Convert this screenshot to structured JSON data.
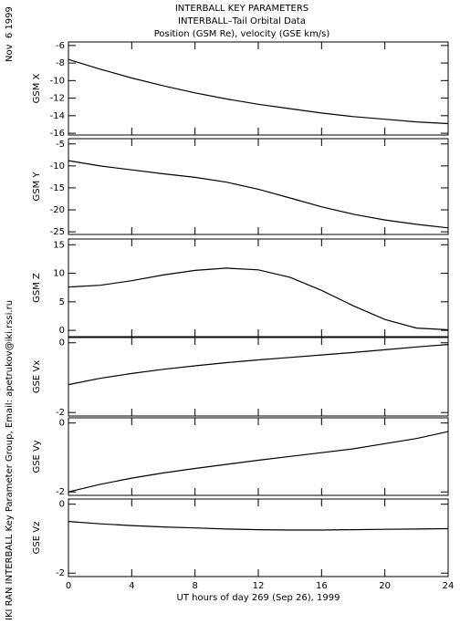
{
  "header": {
    "title": "INTERBALL KEY PARAMETERS",
    "subtitle": "INTERBALL–Tail Orbital Data",
    "description": "Position (GSM Re), velocity (GSE km/s)"
  },
  "date_label": "Nov  6 1999",
  "credit": "IKI RAN INTERBALL Key Parameter Group, Email: apetrukov@iki.rssi.ru",
  "chart_data": [
    {
      "type": "line",
      "ylabel": "GSM X",
      "x": [
        0,
        2,
        4,
        6,
        8,
        10,
        12,
        14,
        16,
        18,
        20,
        22,
        24
      ],
      "values": [
        -7.6,
        -8.7,
        -9.7,
        -10.6,
        -11.4,
        -12.1,
        -12.7,
        -13.2,
        -13.7,
        -14.1,
        -14.4,
        -14.7,
        -14.9
      ],
      "color": "#000000",
      "xlim": [
        0,
        24
      ],
      "ylim": [
        -16.2,
        -5.6
      ],
      "yticks": [
        -6,
        -8,
        -10,
        -12,
        -14,
        -16
      ]
    },
    {
      "type": "line",
      "ylabel": "GSM Y",
      "x": [
        0,
        2,
        4,
        6,
        8,
        10,
        12,
        14,
        16,
        18,
        20,
        22,
        24
      ],
      "values": [
        -8.8,
        -10,
        -10.9,
        -11.8,
        -12.6,
        -13.7,
        -15.3,
        -17.3,
        -19.3,
        -21,
        -22.3,
        -23.3,
        -24.1
      ],
      "color": "#000000",
      "xlim": [
        0,
        24
      ],
      "ylim": [
        -25.6,
        -3.8
      ],
      "yticks": [
        -5,
        -10,
        -15,
        -20,
        -25
      ]
    },
    {
      "type": "line",
      "ylabel": "GSM Z",
      "x": [
        0,
        2,
        4,
        6,
        8,
        10,
        12,
        14,
        16,
        18,
        20,
        22,
        24
      ],
      "values": [
        7.6,
        7.9,
        8.7,
        9.7,
        10.5,
        10.9,
        10.6,
        9.3,
        7.0,
        4.3,
        1.9,
        0.4,
        0.1
      ],
      "color": "#000000",
      "xlim": [
        0,
        24
      ],
      "ylim": [
        -1.1,
        16
      ],
      "yticks": [
        0,
        5,
        10,
        15
      ]
    },
    {
      "type": "line",
      "ylabel": "GSE Vx",
      "x": [
        0,
        2,
        4,
        6,
        8,
        10,
        12,
        14,
        16,
        18,
        20,
        22,
        24
      ],
      "values": [
        -1.2,
        -1.02,
        -0.88,
        -0.76,
        -0.66,
        -0.57,
        -0.49,
        -0.42,
        -0.35,
        -0.28,
        -0.2,
        -0.12,
        -0.05
      ],
      "color": "#000000",
      "xlim": [
        0,
        24
      ],
      "ylim": [
        -2.1,
        0.15
      ],
      "yticks": [
        0,
        -2
      ]
    },
    {
      "type": "line",
      "ylabel": "GSE Vy",
      "x": [
        0,
        2,
        4,
        6,
        8,
        10,
        12,
        14,
        16,
        18,
        20,
        22,
        24
      ],
      "values": [
        -2,
        -1.78,
        -1.6,
        -1.45,
        -1.32,
        -1.2,
        -1.08,
        -0.97,
        -0.86,
        -0.75,
        -0.6,
        -0.45,
        -0.25
      ],
      "color": "#000000",
      "xlim": [
        0,
        24
      ],
      "ylim": [
        -2.1,
        0.15
      ],
      "yticks": [
        0,
        -2
      ]
    },
    {
      "type": "line",
      "ylabel": "GSE Vz",
      "x": [
        0,
        2,
        4,
        6,
        8,
        10,
        12,
        14,
        16,
        18,
        20,
        22,
        24
      ],
      "values": [
        -0.5,
        -0.57,
        -0.62,
        -0.66,
        -0.69,
        -0.72,
        -0.74,
        -0.75,
        -0.75,
        -0.74,
        -0.73,
        -0.72,
        -0.71
      ],
      "color": "#000000",
      "xlim": [
        0,
        24
      ],
      "ylim": [
        -2.1,
        0.15
      ],
      "yticks": [
        0,
        -2
      ],
      "xlabel": "UT hours of day 269 (Sep 26), 1999",
      "xticks": [
        0,
        4,
        8,
        12,
        16,
        20,
        24
      ]
    }
  ]
}
